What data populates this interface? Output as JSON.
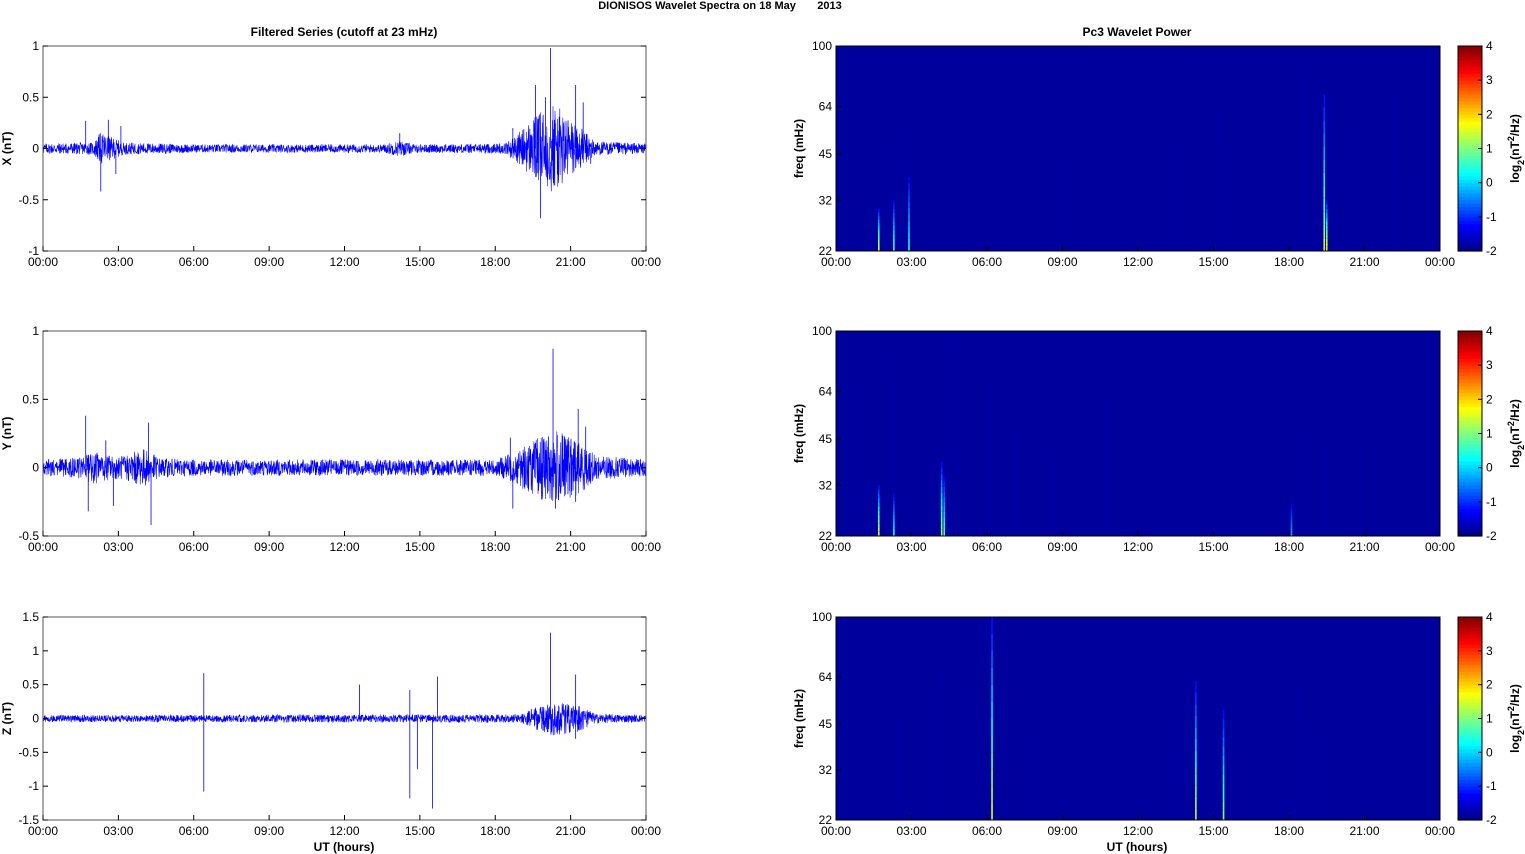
{
  "figure": {
    "title": "DIONISOS Wavelet Spectra on 18 May       2013",
    "left_title": "Filtered Series (cutoff at 23 mHz)",
    "right_title": "Pc3 Wavelet Power",
    "xlabel": "UT (hours)"
  },
  "colors": {
    "signal": "#0000ff",
    "background_power": "#00009c",
    "frame": "#000000"
  },
  "chart_data": [
    {
      "type": "line",
      "component": "X",
      "ylabel": "X (nT)",
      "x_ticks": [
        "00:00",
        "03:00",
        "06:00",
        "09:00",
        "12:00",
        "15:00",
        "18:00",
        "21:00",
        "00:00"
      ],
      "y_ticks": [
        "1",
        "0.5",
        "0",
        "-0.5",
        "-1"
      ],
      "ylim": [
        -1,
        1
      ],
      "x_range_hours": [
        0,
        24
      ],
      "noise_envelope": [
        [
          0,
          0.05
        ],
        [
          2,
          0.06
        ],
        [
          2.3,
          0.16
        ],
        [
          3.2,
          0.06
        ],
        [
          6,
          0.04
        ],
        [
          13.5,
          0.04
        ],
        [
          14.2,
          0.08
        ],
        [
          14.8,
          0.04
        ],
        [
          18.3,
          0.05
        ],
        [
          18.8,
          0.12
        ],
        [
          19.5,
          0.3
        ],
        [
          20.3,
          0.45
        ],
        [
          21.2,
          0.25
        ],
        [
          22,
          0.07
        ],
        [
          24,
          0.05
        ]
      ],
      "spikes": [
        [
          1.7,
          0.27
        ],
        [
          2.3,
          -0.42
        ],
        [
          2.6,
          0.28
        ],
        [
          2.9,
          -0.25
        ],
        [
          3.1,
          0.22
        ],
        [
          14.2,
          0.15
        ],
        [
          18.7,
          0.2
        ],
        [
          19.6,
          0.62
        ],
        [
          19.8,
          -0.68
        ],
        [
          20.0,
          0.5
        ],
        [
          20.2,
          0.98
        ],
        [
          20.3,
          -0.3
        ],
        [
          21.2,
          0.62
        ],
        [
          21.5,
          0.45
        ],
        [
          21.8,
          -0.15
        ]
      ]
    },
    {
      "type": "line",
      "component": "Y",
      "ylabel": "Y (nT)",
      "x_ticks": [
        "00:00",
        "03:00",
        "06:00",
        "09:00",
        "12:00",
        "15:00",
        "18:00",
        "21:00",
        "00:00"
      ],
      "y_ticks": [
        "1",
        "0.5",
        "0",
        "-0.5"
      ],
      "ylim": [
        -0.5,
        1
      ],
      "x_range_hours": [
        0,
        24
      ],
      "noise_envelope": [
        [
          0,
          0.06
        ],
        [
          1.5,
          0.08
        ],
        [
          2,
          0.12
        ],
        [
          3,
          0.08
        ],
        [
          4,
          0.14
        ],
        [
          4.7,
          0.07
        ],
        [
          6,
          0.06
        ],
        [
          18,
          0.06
        ],
        [
          18.8,
          0.12
        ],
        [
          19.5,
          0.2
        ],
        [
          20.3,
          0.28
        ],
        [
          21.3,
          0.2
        ],
        [
          22,
          0.09
        ],
        [
          24,
          0.06
        ]
      ],
      "spikes": [
        [
          1.7,
          0.38
        ],
        [
          1.8,
          -0.32
        ],
        [
          2.5,
          0.2
        ],
        [
          2.8,
          -0.28
        ],
        [
          4.3,
          -0.42
        ],
        [
          4.2,
          0.33
        ],
        [
          18.7,
          -0.3
        ],
        [
          18.6,
          0.22
        ],
        [
          20.3,
          0.87
        ],
        [
          20.4,
          -0.3
        ],
        [
          21.3,
          0.43
        ],
        [
          21.2,
          -0.25
        ],
        [
          21.6,
          0.3
        ]
      ]
    },
    {
      "type": "line",
      "component": "Z",
      "ylabel": "Z (nT)",
      "x_ticks": [
        "00:00",
        "03:00",
        "06:00",
        "09:00",
        "12:00",
        "15:00",
        "18:00",
        "21:00",
        "00:00"
      ],
      "y_ticks": [
        "1.5",
        "1",
        "0.5",
        "0",
        "-0.5",
        "-1",
        "-1.5"
      ],
      "ylim": [
        -1.5,
        1.5
      ],
      "x_range_hours": [
        0,
        24
      ],
      "noise_envelope": [
        [
          0,
          0.05
        ],
        [
          19,
          0.06
        ],
        [
          19.5,
          0.15
        ],
        [
          20.3,
          0.25
        ],
        [
          21.3,
          0.2
        ],
        [
          22,
          0.07
        ],
        [
          24,
          0.05
        ]
      ],
      "spikes": [
        [
          6.4,
          0.67
        ],
        [
          6.4,
          -1.08
        ],
        [
          12.6,
          0.5
        ],
        [
          14.6,
          0.42
        ],
        [
          14.6,
          -1.18
        ],
        [
          14.9,
          -0.75
        ],
        [
          15.5,
          -1.33
        ],
        [
          15.7,
          0.62
        ],
        [
          20.2,
          1.27
        ],
        [
          21.2,
          0.65
        ],
        [
          21.2,
          -0.3
        ]
      ]
    },
    {
      "type": "heatmap",
      "component": "X",
      "ylabel": "freq (mHz)",
      "y_ticks": [
        "100",
        "64",
        "45",
        "32",
        "22"
      ],
      "x_ticks": [
        "00:00",
        "03:00",
        "06:00",
        "09:00",
        "12:00",
        "15:00",
        "18:00",
        "21:00",
        "00:00"
      ],
      "colorbar_ticks": [
        "4",
        "3",
        "2",
        "1",
        "0",
        "-1",
        "-2"
      ],
      "colorbar_range": [
        -2,
        4
      ],
      "colorbar_label": "log2(nT2/Hz)",
      "streaks": [
        [
          1.7,
          30,
          0.5
        ],
        [
          2.3,
          32,
          0.35
        ],
        [
          2.9,
          38,
          0.3
        ],
        [
          19.4,
          70,
          0.45
        ],
        [
          19.5,
          32,
          0.55
        ]
      ]
    },
    {
      "type": "heatmap",
      "component": "Y",
      "ylabel": "freq (mHz)",
      "y_ticks": [
        "100",
        "64",
        "45",
        "32",
        "22"
      ],
      "x_ticks": [
        "00:00",
        "03:00",
        "06:00",
        "09:00",
        "12:00",
        "15:00",
        "18:00",
        "21:00",
        "00:00"
      ],
      "colorbar_ticks": [
        "4",
        "3",
        "2",
        "1",
        "0",
        "-1",
        "-2"
      ],
      "colorbar_range": [
        -2,
        4
      ],
      "colorbar_label": "log2(nT2/Hz)",
      "streaks": [
        [
          1.7,
          32,
          0.5
        ],
        [
          2.3,
          30,
          0.3
        ],
        [
          4.2,
          38,
          0.45
        ],
        [
          4.3,
          34,
          0.35
        ],
        [
          18.1,
          28,
          0.2
        ]
      ]
    },
    {
      "type": "heatmap",
      "component": "Z",
      "ylabel": "freq (mHz)",
      "y_ticks": [
        "100",
        "64",
        "45",
        "32",
        "22"
      ],
      "x_ticks": [
        "00:00",
        "03:00",
        "06:00",
        "09:00",
        "12:00",
        "15:00",
        "18:00",
        "21:00",
        "00:00"
      ],
      "colorbar_ticks": [
        "4",
        "3",
        "2",
        "1",
        "0",
        "-1",
        "-2"
      ],
      "colorbar_range": [
        -2,
        4
      ],
      "colorbar_label": "log2(nT2/Hz)",
      "streaks": [
        [
          6.2,
          100,
          0.5
        ],
        [
          14.3,
          62,
          0.45
        ],
        [
          15.4,
          50,
          0.4
        ]
      ]
    }
  ]
}
